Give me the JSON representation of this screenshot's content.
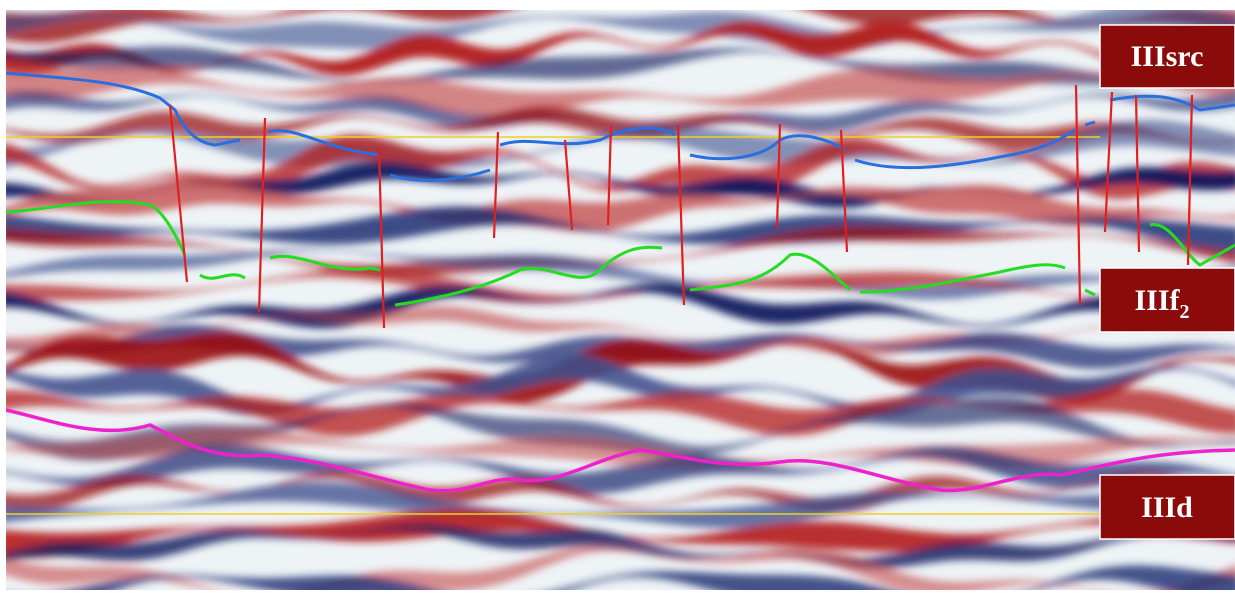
{
  "labels": [
    {
      "text": "IIIsrc"
    },
    {
      "text": "IIIf",
      "subscript": "2"
    },
    {
      "text": "IIId"
    }
  ]
}
